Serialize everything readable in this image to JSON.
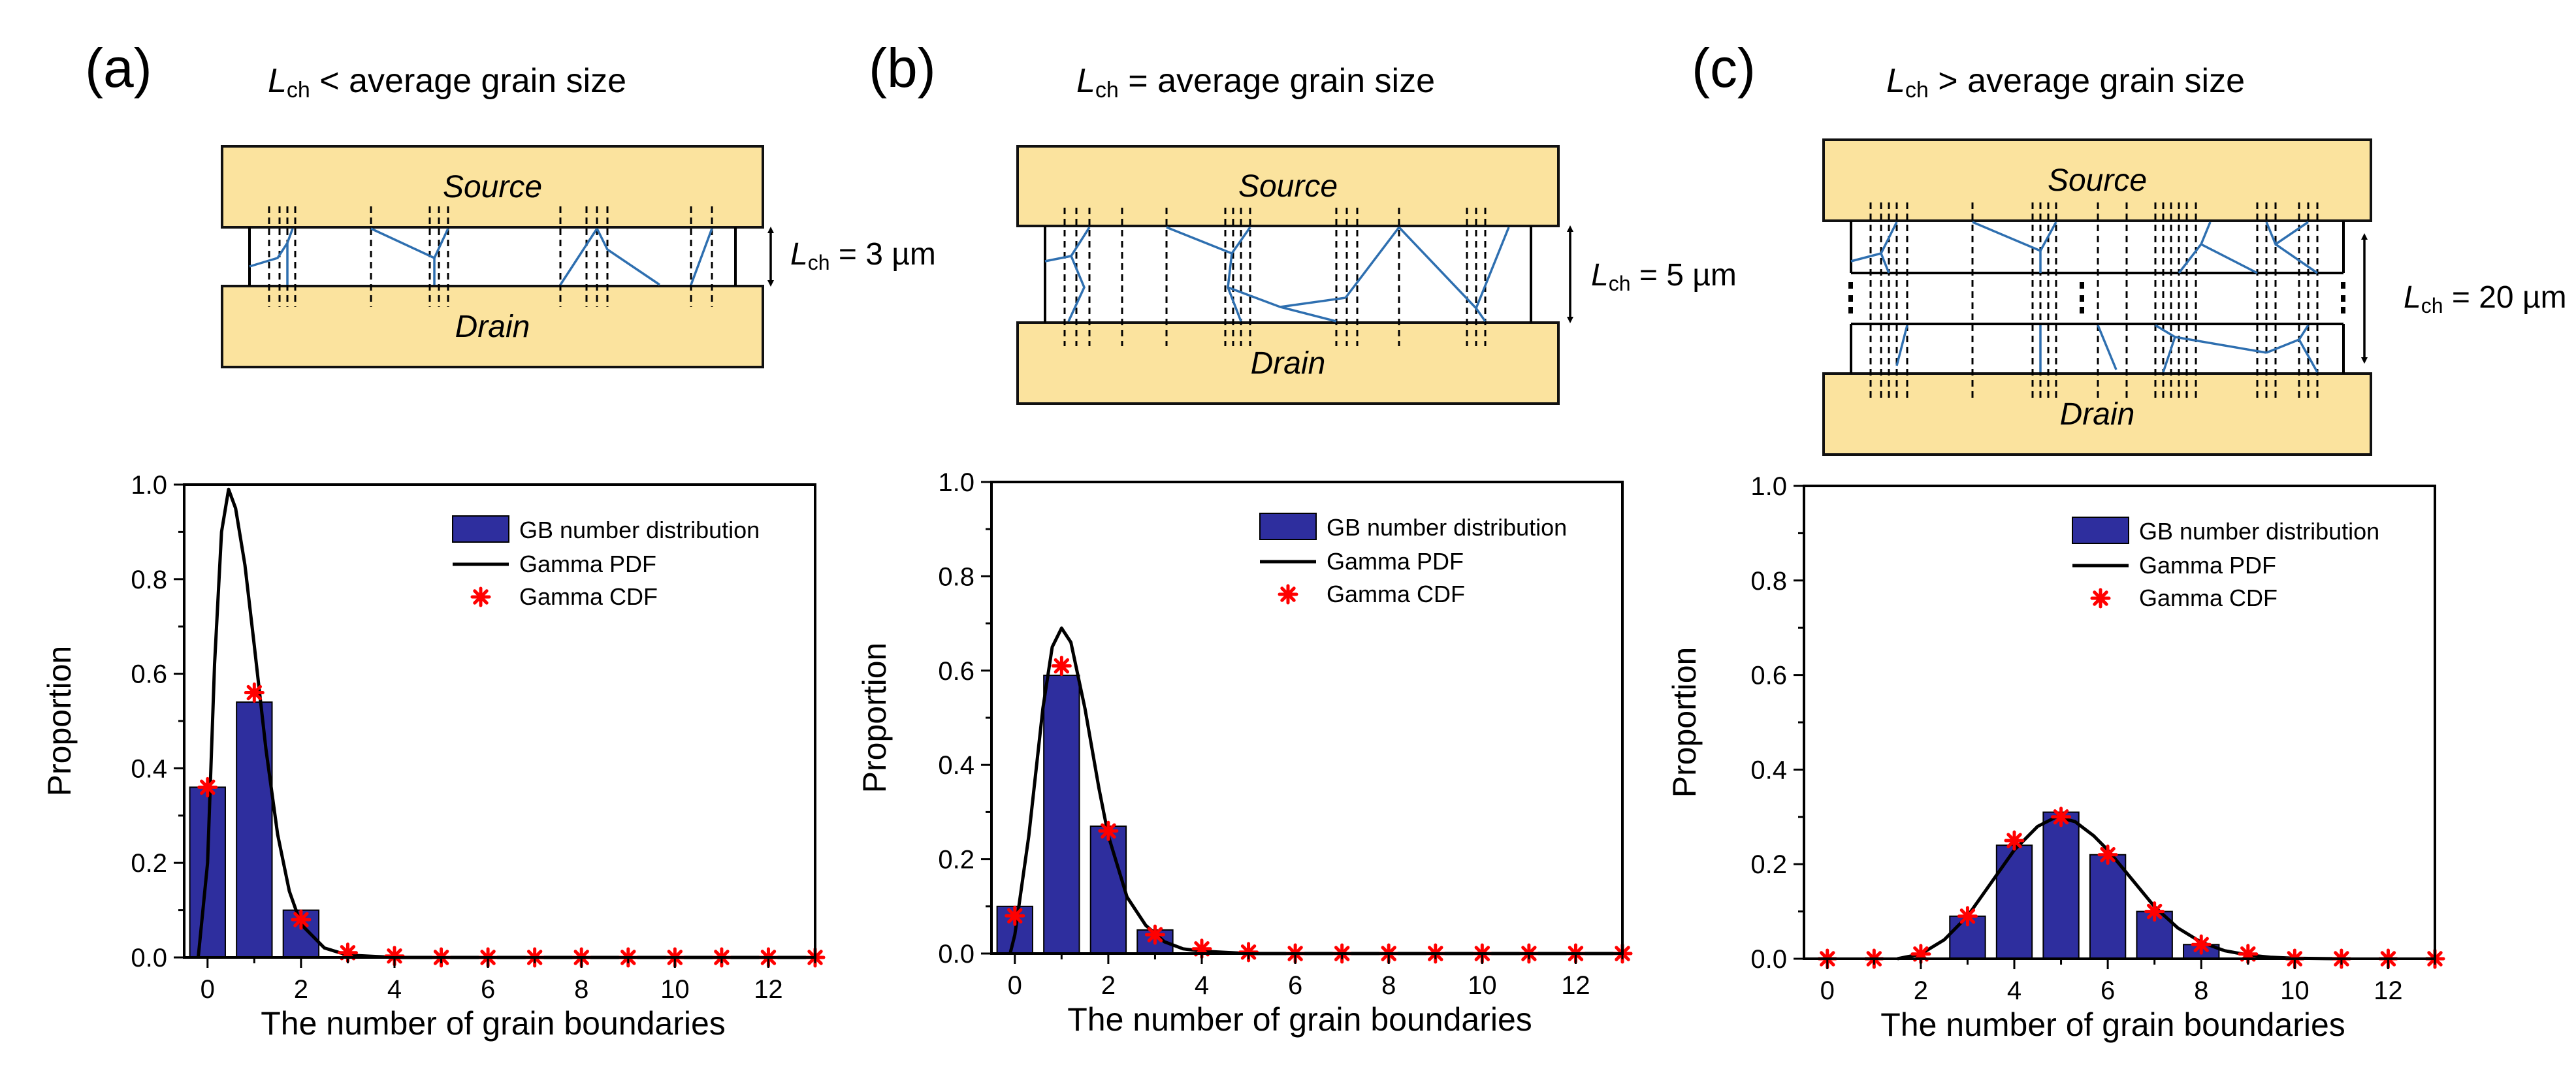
{
  "panels": [
    {
      "label": "(a)",
      "title_rel": "< average grain size",
      "lch_label": "= 3 µm",
      "source": "Source",
      "drain": "Drain"
    },
    {
      "label": "(b)",
      "title_rel": "= average grain size",
      "lch_label": "= 5 µm",
      "source": "Source",
      "drain": "Drain"
    },
    {
      "label": "(c)",
      "title_rel": "> average grain size",
      "lch_label": "= 20 µm",
      "source": "Source",
      "drain": "Drain"
    }
  ],
  "lch_symbol": "L",
  "lch_sub": "ch",
  "colors": {
    "bar": "#2e2e9e",
    "marker": "#ff0000",
    "curve": "#000000",
    "electrode": "#fbe39e",
    "grain": "#2e6fb0"
  },
  "chart_data": [
    {
      "type": "bar",
      "xlabel": "The number of grain boundaries",
      "ylabel": "Proportion",
      "xlim": [
        -0.5,
        13
      ],
      "ylim": [
        0,
        1.0
      ],
      "xticks": [
        0,
        2,
        4,
        6,
        8,
        10,
        12
      ],
      "yticks": [
        0.0,
        0.2,
        0.4,
        0.6,
        0.8,
        1.0
      ],
      "ytick_labels": [
        "0.0",
        "0.2",
        "0.4",
        "0.6",
        "0.8",
        "1.0"
      ],
      "legend": [
        "GB number distribution",
        "Gamma PDF",
        "Gamma CDF"
      ],
      "legend_position": "top-right",
      "bars": {
        "x": [
          0,
          1,
          2
        ],
        "values": [
          0.36,
          0.54,
          0.1
        ]
      },
      "pdf": {
        "x": [
          -0.2,
          0.0,
          0.15,
          0.3,
          0.45,
          0.6,
          0.8,
          1.0,
          1.25,
          1.5,
          1.75,
          2.0,
          2.5,
          3.0,
          4.0,
          6.0,
          13.0
        ],
        "y": [
          0.0,
          0.2,
          0.62,
          0.9,
          0.99,
          0.95,
          0.83,
          0.66,
          0.44,
          0.26,
          0.14,
          0.07,
          0.02,
          0.005,
          0.0,
          0.0,
          0.0
        ]
      },
      "cdf_markers": {
        "x": [
          0,
          1,
          2,
          3,
          4,
          5,
          6,
          7,
          8,
          9,
          10,
          11,
          12,
          13
        ],
        "y": [
          0.36,
          0.56,
          0.08,
          0.01,
          0.003,
          0.0,
          0.0,
          0.0,
          0.0,
          0.0,
          0.0,
          0.0,
          0.0,
          0.0
        ]
      }
    },
    {
      "type": "bar",
      "xlabel": "The number of grain boundaries",
      "ylabel": "Proportion",
      "xlim": [
        -0.5,
        13
      ],
      "ylim": [
        0,
        1.0
      ],
      "xticks": [
        0,
        2,
        4,
        6,
        8,
        10,
        12
      ],
      "yticks": [
        0.0,
        0.2,
        0.4,
        0.6,
        0.8,
        1.0
      ],
      "ytick_labels": [
        "0.0",
        "0.2",
        "0.4",
        "0.6",
        "0.8",
        "1.0"
      ],
      "legend": [
        "GB number distribution",
        "Gamma PDF",
        "Gamma CDF"
      ],
      "legend_position": "top-right",
      "bars": {
        "x": [
          0,
          1,
          2,
          3
        ],
        "values": [
          0.1,
          0.59,
          0.27,
          0.05
        ]
      },
      "pdf": {
        "x": [
          -0.1,
          0.0,
          0.3,
          0.6,
          0.8,
          1.0,
          1.2,
          1.5,
          1.8,
          2.0,
          2.4,
          2.8,
          3.2,
          3.6,
          4.0,
          5.0,
          13.0
        ],
        "y": [
          0.0,
          0.04,
          0.25,
          0.52,
          0.65,
          0.69,
          0.66,
          0.52,
          0.35,
          0.25,
          0.12,
          0.06,
          0.025,
          0.01,
          0.005,
          0.0,
          0.0
        ]
      },
      "cdf_markers": {
        "x": [
          0,
          1,
          2,
          3,
          4,
          5,
          6,
          7,
          8,
          9,
          10,
          11,
          12,
          13
        ],
        "y": [
          0.08,
          0.61,
          0.26,
          0.04,
          0.01,
          0.003,
          0.0,
          0.0,
          0.0,
          0.0,
          0.0,
          0.0,
          0.0,
          0.0
        ]
      }
    },
    {
      "type": "bar",
      "xlabel": "The number of grain boundaries",
      "ylabel": "Proportion",
      "xlim": [
        -0.5,
        13
      ],
      "ylim": [
        0,
        1.0
      ],
      "xticks": [
        0,
        2,
        4,
        6,
        8,
        10,
        12
      ],
      "yticks": [
        0.0,
        0.2,
        0.4,
        0.6,
        0.8,
        1.0
      ],
      "ytick_labels": [
        "0.0",
        "0.2",
        "0.4",
        "0.6",
        "0.8",
        "1.0"
      ],
      "legend": [
        "GB number distribution",
        "Gamma PDF",
        "Gamma CDF"
      ],
      "legend_position": "top-right",
      "bars": {
        "x": [
          3,
          4,
          5,
          6,
          7,
          8
        ],
        "values": [
          0.09,
          0.24,
          0.31,
          0.22,
          0.1,
          0.03
        ]
      },
      "pdf": {
        "x": [
          1.5,
          2.0,
          2.5,
          3.0,
          3.5,
          4.0,
          4.5,
          4.9,
          5.3,
          5.7,
          6.0,
          6.5,
          7.0,
          7.5,
          8.0,
          8.5,
          9.0,
          9.5,
          10.0,
          11.0
        ],
        "y": [
          0.0,
          0.01,
          0.04,
          0.09,
          0.16,
          0.23,
          0.28,
          0.3,
          0.29,
          0.26,
          0.23,
          0.17,
          0.11,
          0.065,
          0.035,
          0.017,
          0.008,
          0.003,
          0.001,
          0.0
        ]
      },
      "cdf_markers": {
        "x": [
          0,
          1,
          2,
          3,
          4,
          5,
          6,
          7,
          8,
          9,
          10,
          11,
          12,
          13
        ],
        "y": [
          0.0,
          0.0,
          0.01,
          0.09,
          0.25,
          0.3,
          0.22,
          0.1,
          0.03,
          0.01,
          0.0,
          0.0,
          0.0,
          0.0
        ]
      }
    }
  ]
}
